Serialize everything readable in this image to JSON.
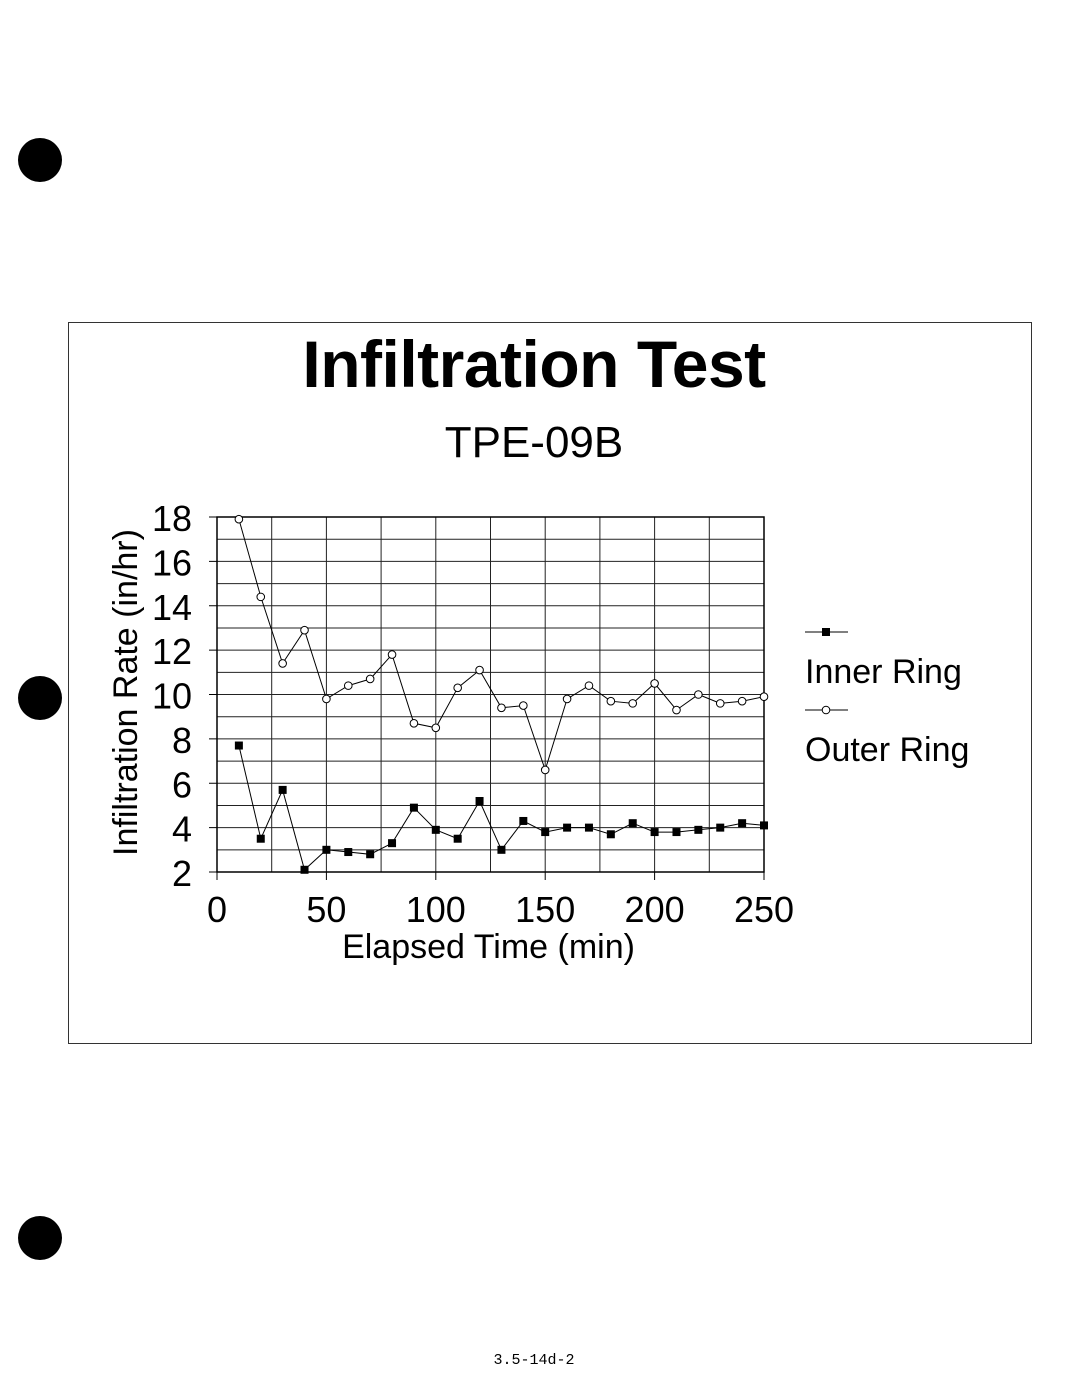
{
  "page": {
    "footer_ref": "3.5-14d-2"
  },
  "chart_data": {
    "type": "line",
    "title": "Infiltration Test",
    "subtitle": "TPE-09B",
    "xlabel": "Elapsed Time (min)",
    "ylabel": "Infiltration Rate (in/hr)",
    "xlim": [
      0,
      250
    ],
    "ylim": [
      2,
      18
    ],
    "x_ticks": [
      "0",
      "50",
      "100",
      "150",
      "200",
      "250"
    ],
    "y_ticks": [
      "2",
      "4",
      "6",
      "8",
      "10",
      "12",
      "14",
      "16",
      "18"
    ],
    "grid": true,
    "legend_position": "right",
    "x": [
      10,
      20,
      30,
      40,
      50,
      60,
      70,
      80,
      90,
      100,
      110,
      120,
      130,
      140,
      150,
      160,
      170,
      180,
      190,
      200,
      210,
      220,
      230,
      240,
      250
    ],
    "series": [
      {
        "name": "Inner Ring",
        "marker": "filled-square",
        "color": "#000000",
        "values": [
          7.7,
          3.5,
          5.7,
          2.1,
          3.0,
          2.9,
          2.8,
          3.3,
          4.9,
          3.9,
          3.5,
          5.2,
          3.0,
          4.3,
          3.8,
          4.0,
          4.0,
          3.7,
          4.2,
          3.8,
          3.8,
          3.9,
          4.0,
          4.2,
          4.1
        ]
      },
      {
        "name": "Outer Ring",
        "marker": "open-circle",
        "color": "#000000",
        "values": [
          17.9,
          14.4,
          11.4,
          12.9,
          9.8,
          10.4,
          10.7,
          11.8,
          8.7,
          8.5,
          10.3,
          11.1,
          9.4,
          9.5,
          6.6,
          9.8,
          10.4,
          9.7,
          9.6,
          10.5,
          9.3,
          10.0,
          9.6,
          9.7,
          9.9
        ]
      }
    ]
  }
}
